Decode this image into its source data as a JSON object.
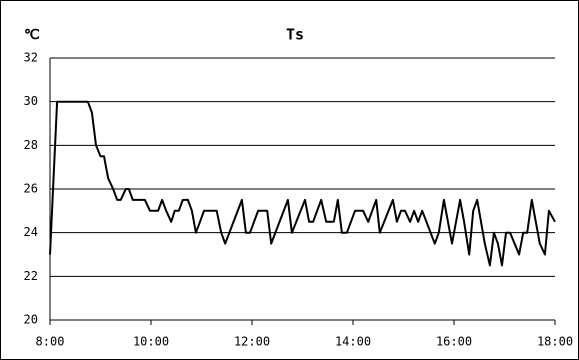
{
  "chart_data": {
    "type": "line",
    "title": "Ts",
    "y_label": "℃",
    "color": "#000000",
    "grid": true,
    "x": [
      8,
      8.14,
      8.75,
      8.83,
      8.91,
      9.0,
      9.07,
      9.15,
      9.25,
      9.33,
      9.4,
      9.5,
      9.56,
      9.64,
      9.88,
      9.98,
      10.14,
      10.22,
      10.3,
      10.4,
      10.47,
      10.55,
      10.63,
      10.73,
      10.81,
      10.89,
      10.97,
      11.05,
      11.3,
      11.39,
      11.47,
      11.8,
      11.88,
      11.96,
      12.12,
      12.3,
      12.38,
      12.71,
      12.79,
      13.05,
      13.13,
      13.21,
      13.37,
      13.47,
      13.62,
      13.7,
      13.78,
      13.88,
      14.04,
      14.2,
      14.3,
      14.46,
      14.53,
      14.79,
      14.87,
      14.95,
      15.03,
      15.13,
      15.21,
      15.29,
      15.37,
      15.62,
      15.7,
      15.8,
      15.96,
      16.12,
      16.2,
      16.3,
      16.38,
      16.46,
      16.61,
      16.71,
      16.79,
      16.87,
      16.95,
      17.03,
      17.11,
      17.29,
      17.37,
      17.45,
      17.54,
      17.7,
      17.8,
      17.88,
      18.0
    ],
    "values": [
      23,
      30,
      30,
      29.5,
      28,
      27.5,
      27.5,
      26.5,
      26,
      25.5,
      25.5,
      26,
      26,
      25.5,
      25.5,
      25,
      25,
      25.5,
      25,
      24.5,
      25,
      25,
      25.5,
      25.5,
      25,
      24,
      24.5,
      25,
      25,
      24,
      23.5,
      25.5,
      24,
      24,
      25,
      25,
      23.5,
      25.5,
      24,
      25.5,
      24.5,
      24.5,
      25.5,
      24.5,
      24.5,
      25.5,
      24,
      24,
      25,
      25,
      24.5,
      25.5,
      24,
      25.5,
      24.5,
      25,
      25,
      24.5,
      25,
      24.5,
      25,
      23.5,
      24,
      25.5,
      23.5,
      25.5,
      24.5,
      23,
      25,
      25.5,
      23.5,
      22.5,
      24,
      23.5,
      22.5,
      24,
      24,
      23,
      24,
      24,
      25.5,
      23.5,
      23,
      25,
      24.5
    ],
    "xlim": [
      8,
      18
    ],
    "xticks": [
      {
        "value": 8,
        "label": "8:00"
      },
      {
        "value": 10,
        "label": "10:00"
      },
      {
        "value": 12,
        "label": "12:00"
      },
      {
        "value": 14,
        "label": "14:00"
      },
      {
        "value": 16,
        "label": "16:00"
      },
      {
        "value": 18,
        "label": "18:00"
      }
    ],
    "ylim": [
      20,
      32
    ],
    "yticks": [
      20,
      22,
      24,
      26,
      28,
      30,
      32
    ]
  }
}
